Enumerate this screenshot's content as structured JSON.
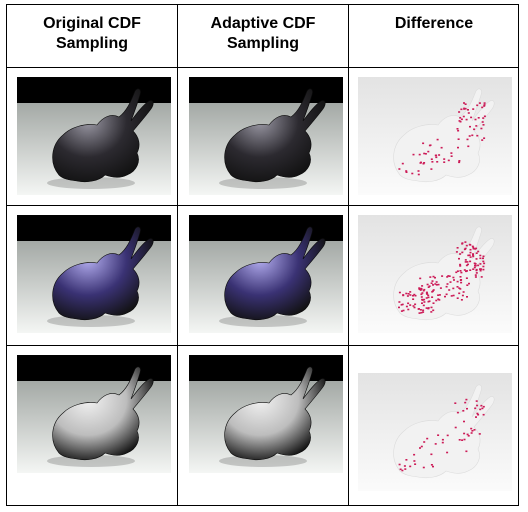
{
  "headers": [
    "Original CDF\nSampling",
    "Adaptive CDF\nSampling",
    "Difference"
  ],
  "rows": [
    {
      "material": "dark-metal",
      "bunny_color": "#2c2a30",
      "bunny_light": "#9a98a4",
      "diff_amount": "moderate"
    },
    {
      "material": "purple-metal",
      "bunny_color": "#3a3274",
      "bunny_light": "#b4aef0",
      "diff_amount": "high"
    },
    {
      "material": "white-diffuse",
      "bunny_color": "#bdbdbd",
      "bunny_light": "#f2f2f2",
      "diff_amount": "low"
    }
  ],
  "colors": {
    "difference_marks": "#cc1b57",
    "border": "#000000"
  }
}
